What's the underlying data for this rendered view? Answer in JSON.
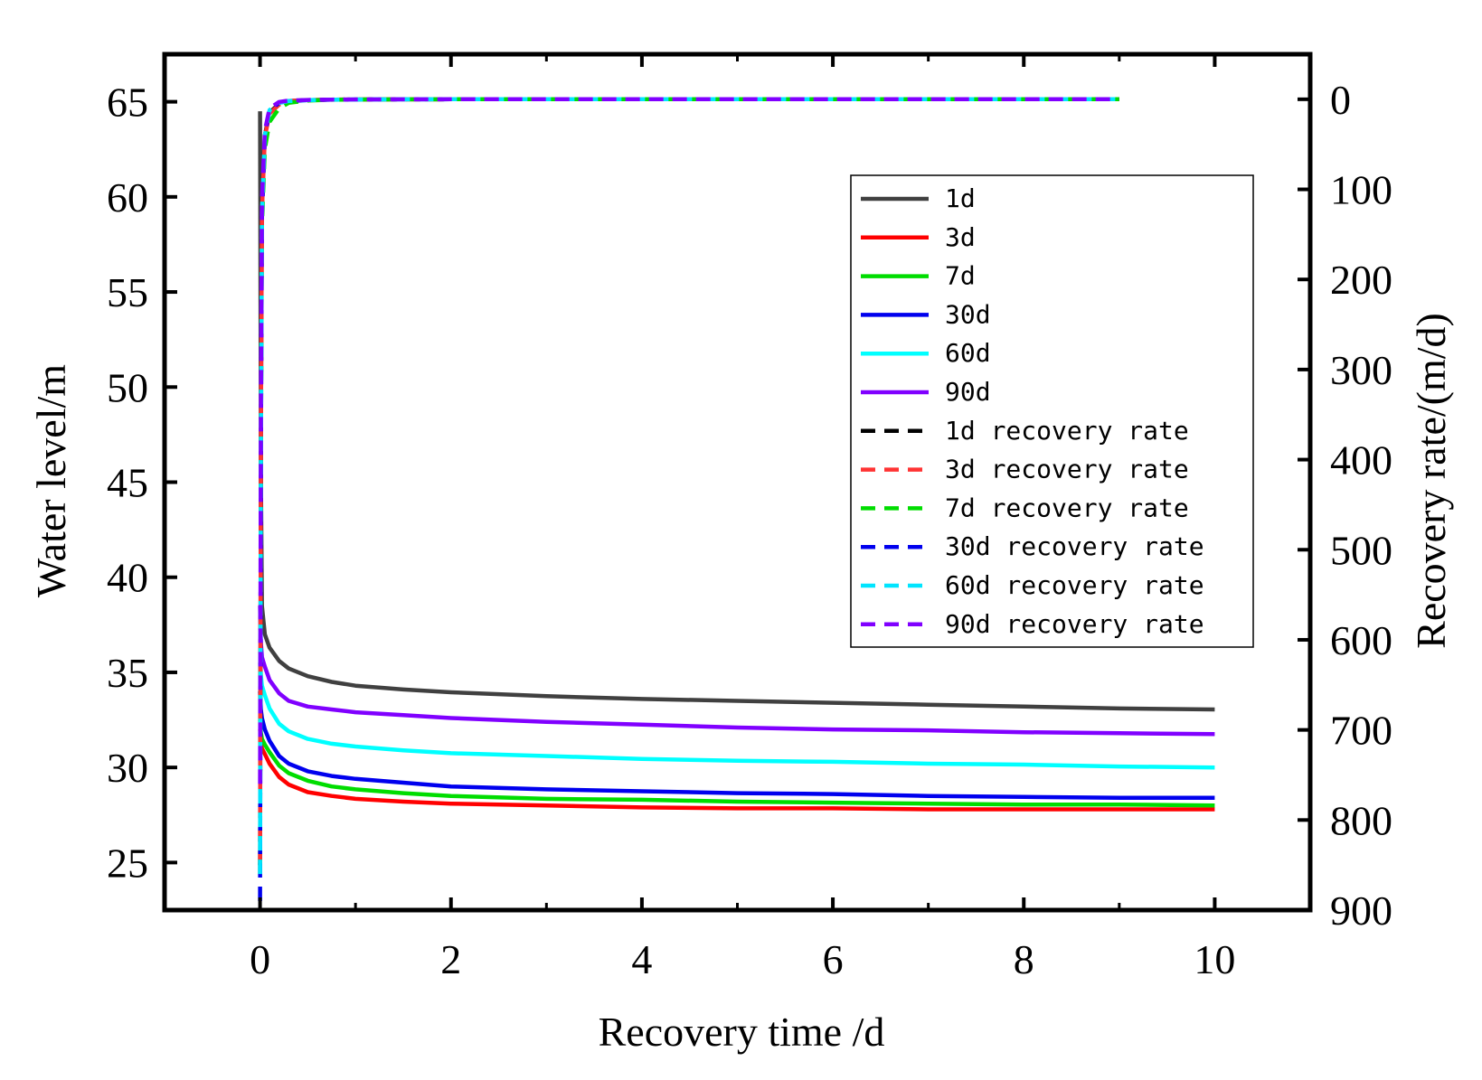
{
  "chart_data": {
    "type": "line",
    "title": "",
    "xlabel": "Recovery time /d",
    "ylabel": "Water level/m",
    "y2label": "Recovery rate/(m/d)",
    "xlim": [
      -1,
      11
    ],
    "ylim": [
      22.5,
      67.5
    ],
    "y2lim": [
      900,
      -50
    ],
    "xticks": [
      0,
      2,
      4,
      6,
      8,
      10
    ],
    "yticks": [
      25,
      30,
      35,
      40,
      45,
      50,
      55,
      60,
      65
    ],
    "y2ticks": [
      0,
      100,
      200,
      300,
      400,
      500,
      600,
      700,
      800,
      900
    ],
    "grid": false,
    "legend_position": "top-right",
    "x": [
      0,
      0.01,
      0.02,
      0.05,
      0.1,
      0.2,
      0.3,
      0.5,
      0.75,
      1,
      1.5,
      2,
      3,
      4,
      5,
      6,
      7,
      8,
      9,
      10
    ],
    "series": [
      {
        "name": "1d",
        "axis": "left",
        "color": "#404040",
        "dash": false,
        "values": [
          64.5,
          45.0,
          38.5,
          37.0,
          36.3,
          35.6,
          35.2,
          34.8,
          34.5,
          34.3,
          34.1,
          33.95,
          33.75,
          33.6,
          33.5,
          33.4,
          33.3,
          33.2,
          33.1,
          33.05
        ]
      },
      {
        "name": "3d",
        "axis": "left",
        "color": "#ff0000",
        "dash": false,
        "values": [
          32.0,
          31.3,
          31.0,
          30.7,
          30.2,
          29.5,
          29.1,
          28.7,
          28.5,
          28.35,
          28.2,
          28.1,
          28.0,
          27.9,
          27.85,
          27.85,
          27.8,
          27.8,
          27.8,
          27.8
        ]
      },
      {
        "name": "7d",
        "axis": "left",
        "color": "#00dd00",
        "dash": false,
        "values": [
          32.5,
          31.8,
          31.5,
          31.2,
          30.8,
          30.1,
          29.7,
          29.3,
          29.0,
          28.85,
          28.65,
          28.5,
          28.35,
          28.3,
          28.2,
          28.15,
          28.1,
          28.05,
          28.05,
          28.0
        ]
      },
      {
        "name": "30d",
        "axis": "left",
        "color": "#0000ee",
        "dash": false,
        "values": [
          34.0,
          33.0,
          32.6,
          32.0,
          31.4,
          30.6,
          30.2,
          29.8,
          29.55,
          29.4,
          29.2,
          29.0,
          28.85,
          28.75,
          28.65,
          28.6,
          28.5,
          28.45,
          28.4,
          28.4
        ]
      },
      {
        "name": "60d",
        "axis": "left",
        "color": "#00ffff",
        "dash": false,
        "values": [
          35.5,
          34.8,
          34.3,
          33.8,
          33.1,
          32.3,
          31.9,
          31.5,
          31.25,
          31.1,
          30.9,
          30.75,
          30.6,
          30.45,
          30.35,
          30.3,
          30.2,
          30.15,
          30.05,
          30.0
        ]
      },
      {
        "name": "90d",
        "axis": "left",
        "color": "#8000ff",
        "dash": false,
        "values": [
          38.5,
          36.5,
          35.8,
          35.3,
          34.6,
          33.9,
          33.5,
          33.2,
          33.05,
          32.9,
          32.75,
          32.6,
          32.4,
          32.25,
          32.1,
          32.0,
          31.95,
          31.85,
          31.8,
          31.75
        ]
      },
      {
        "name": "1d recovery rate",
        "axis": "right",
        "color": "#000000",
        "dash": true,
        "values": [
          850,
          350,
          120,
          40,
          15,
          5,
          2,
          1,
          0.5,
          0.3,
          0.1,
          0,
          0,
          0,
          0,
          0,
          0,
          0,
          0,
          null
        ]
      },
      {
        "name": "3d recovery rate",
        "axis": "right",
        "color": "#ff3333",
        "dash": true,
        "values": [
          850,
          360,
          125,
          42,
          16,
          6,
          2,
          1,
          0.5,
          0.3,
          0.1,
          0,
          0,
          0,
          0,
          0,
          0,
          0,
          0,
          null
        ]
      },
      {
        "name": "7d recovery rate",
        "axis": "right",
        "color": "#00dd00",
        "dash": true,
        "values": [
          860,
          380,
          140,
          55,
          25,
          10,
          4,
          1.5,
          0.6,
          0.3,
          0.1,
          0,
          0,
          0,
          0,
          0,
          0,
          0,
          0,
          null
        ]
      },
      {
        "name": "30d recovery rate",
        "axis": "right",
        "color": "#0000ee",
        "dash": true,
        "values": [
          890,
          380,
          130,
          40,
          12,
          4,
          2,
          1,
          0.5,
          0.3,
          0.1,
          0,
          0,
          0,
          0,
          0,
          0,
          0,
          0,
          null
        ]
      },
      {
        "name": "60d recovery rate",
        "axis": "right",
        "color": "#00e5ff",
        "dash": true,
        "values": [
          860,
          370,
          125,
          40,
          12,
          4,
          2,
          1,
          0.5,
          0.3,
          0.1,
          0,
          0,
          0,
          0,
          0,
          0,
          0,
          0,
          null
        ]
      },
      {
        "name": "90d recovery rate",
        "axis": "right",
        "color": "#8000ff",
        "dash": true,
        "values": [
          760,
          330,
          110,
          35,
          10,
          3,
          1.5,
          0.8,
          0.4,
          0.2,
          0.1,
          0,
          0,
          0,
          0,
          0,
          0,
          0,
          0,
          null
        ]
      }
    ]
  }
}
